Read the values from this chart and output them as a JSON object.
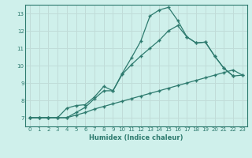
{
  "xlabel": "Humidex (Indice chaleur)",
  "bg_color": "#cff0eb",
  "grid_color": "#c0dcd8",
  "line_color": "#2d7a6e",
  "xlim": [
    -0.5,
    23.5
  ],
  "ylim": [
    6.5,
    13.5
  ],
  "xticks": [
    0,
    1,
    2,
    3,
    4,
    5,
    6,
    7,
    8,
    9,
    10,
    11,
    12,
    13,
    14,
    15,
    16,
    17,
    18,
    19,
    20,
    21,
    22,
    23
  ],
  "yticks": [
    7,
    8,
    9,
    10,
    11,
    12,
    13
  ],
  "line1_x": [
    0,
    1,
    2,
    3,
    4,
    5,
    6,
    7,
    8,
    9,
    10,
    11,
    12,
    13,
    14,
    15,
    16,
    17,
    18,
    19,
    20,
    21,
    22
  ],
  "line1_y": [
    7.0,
    7.0,
    7.0,
    7.0,
    7.55,
    7.7,
    7.75,
    8.2,
    8.8,
    8.55,
    9.55,
    10.45,
    11.4,
    12.85,
    13.2,
    13.35,
    12.6,
    11.65,
    11.3,
    11.35,
    10.55,
    9.85,
    9.4
  ],
  "line2_x": [
    0,
    1,
    2,
    3,
    4,
    5,
    6,
    7,
    8,
    9,
    10,
    11,
    12,
    13,
    14,
    15,
    16,
    17,
    18,
    19,
    20,
    21,
    22,
    23
  ],
  "line2_y": [
    7.0,
    7.0,
    7.0,
    7.0,
    7.0,
    7.3,
    7.6,
    8.1,
    8.55,
    8.55,
    9.5,
    10.05,
    10.55,
    11.0,
    11.45,
    12.0,
    12.3,
    11.65,
    11.3,
    11.35,
    10.55,
    9.85,
    9.4,
    9.45
  ],
  "line3_x": [
    0,
    1,
    2,
    3,
    4,
    5,
    6,
    7,
    8,
    9,
    10,
    11,
    12,
    13,
    14,
    15,
    16,
    17,
    18,
    19,
    20,
    21,
    22,
    23
  ],
  "line3_y": [
    7.0,
    7.0,
    7.0,
    7.0,
    7.0,
    7.15,
    7.3,
    7.5,
    7.65,
    7.8,
    7.95,
    8.1,
    8.25,
    8.4,
    8.55,
    8.7,
    8.85,
    9.0,
    9.15,
    9.3,
    9.45,
    9.6,
    9.75,
    9.45
  ]
}
